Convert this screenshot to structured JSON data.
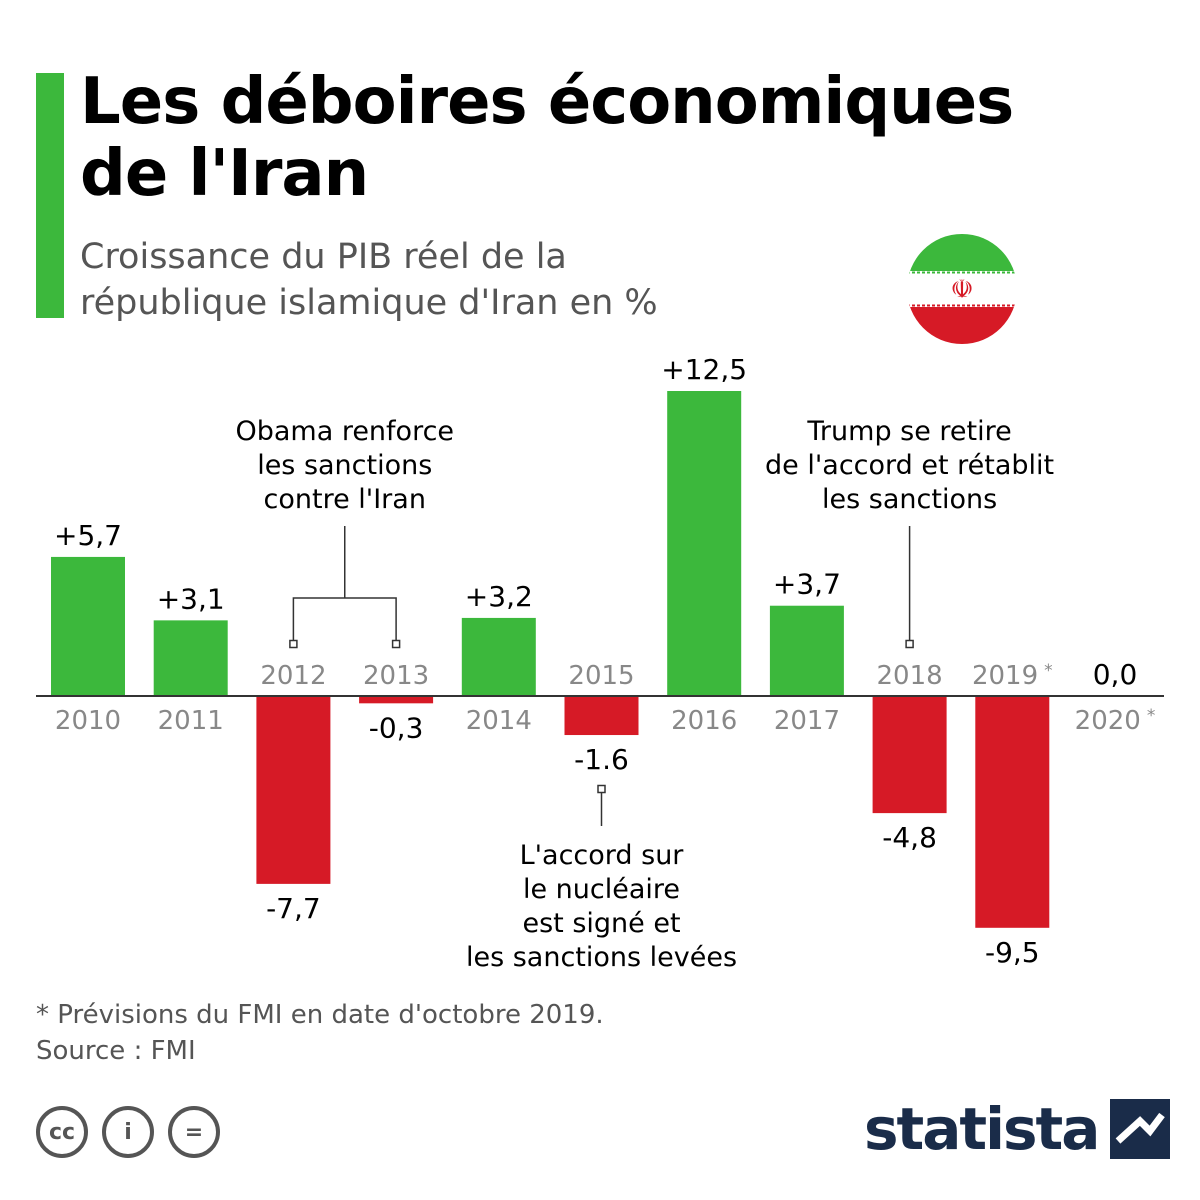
{
  "title": "Les déboires économiques de l'Iran",
  "title_lines": [
    "Les déboires économiques",
    "de l'Iran"
  ],
  "subtitle_lines": [
    "Croissance du PIB réel de la",
    "république islamique d'Iran en %"
  ],
  "chart_data": {
    "type": "bar",
    "title": "Les déboires économiques de l'Iran",
    "subtitle": "Croissance du PIB réel de la république islamique d'Iran en %",
    "ylabel": "%",
    "categories": [
      "2010",
      "2011",
      "2012",
      "2013",
      "2014",
      "2015",
      "2016",
      "2017",
      "2018",
      "2019 *",
      "2020 *"
    ],
    "values": [
      5.7,
      3.1,
      -7.7,
      -0.3,
      3.2,
      -1.6,
      12.5,
      3.7,
      -4.8,
      -9.5,
      0.0
    ],
    "value_labels": [
      "+5,7",
      "+3,1",
      "-7,7",
      "-0,3",
      "+3,2",
      "-1.6",
      "+12,5",
      "+3,7",
      "-4,8",
      "-9,5",
      "0,0"
    ],
    "ylim": [
      -10,
      13
    ],
    "grid": false,
    "colors": {
      "positive": "#3cb83c",
      "negative": "#d61a26",
      "axis": "#333333",
      "year_label": "#888888"
    },
    "annotations": [
      {
        "lines": [
          "Obama renforce",
          "les sanctions",
          "contre l'Iran"
        ],
        "targets": [
          "2012",
          "2013"
        ]
      },
      {
        "lines": [
          "L'accord sur",
          "le nucléaire",
          "est signé et",
          "les sanctions levées"
        ],
        "targets": [
          "2015"
        ]
      },
      {
        "lines": [
          "Trump se retire",
          "de l'accord et rétablit",
          "les sanctions"
        ],
        "targets": [
          "2018"
        ]
      }
    ]
  },
  "footnote": "* Prévisions du FMI en date d'octobre 2019.",
  "source": "Source : FMI",
  "license_icons": [
    {
      "icon": "creative-commons-icon",
      "symbol": "cc"
    },
    {
      "icon": "attribution-icon",
      "symbol": "i"
    },
    {
      "icon": "no-derivatives-icon",
      "symbol": "="
    }
  ],
  "brand": "statista",
  "brand_color": "#1a2c49",
  "flag": {
    "icon": "iran-flag-icon",
    "emblem": "☫",
    "colors": {
      "green": "#3cb83c",
      "white": "#ffffff",
      "red": "#d61a26"
    }
  }
}
